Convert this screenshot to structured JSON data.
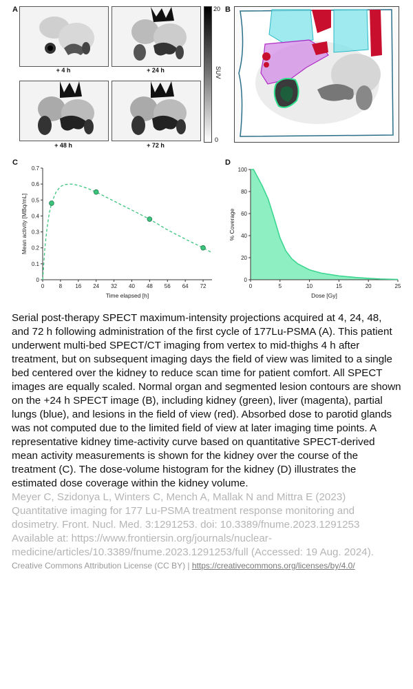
{
  "figure": {
    "panel_a": {
      "letter": "A",
      "images": [
        {
          "label": "+ 4 h"
        },
        {
          "label": "+ 24 h"
        },
        {
          "label": "+ 48 h"
        },
        {
          "label": "+ 72 h"
        }
      ],
      "colorbar": {
        "max": "20",
        "min": "0",
        "title": "SUV"
      }
    },
    "panel_b": {
      "letter": "B"
    },
    "panel_c": {
      "letter": "C"
    },
    "panel_d": {
      "letter": "D"
    }
  },
  "chart_data": [
    {
      "type": "line",
      "panel": "C",
      "xlabel": "Time elapsed [h]",
      "ylabel": "Mean activity [MBq/mL]",
      "x_ticks": [
        "0",
        "8",
        "16",
        "24",
        "32",
        "40",
        "48",
        "56",
        "64",
        "72"
      ],
      "y_ticks": [
        "0",
        "0.1",
        "0.2",
        "0.3",
        "0.4",
        "0.5",
        "0.6",
        "0.7"
      ],
      "xlim": [
        0,
        76
      ],
      "ylim": [
        0,
        0.7
      ],
      "points": [
        {
          "x": 4,
          "y": 0.48
        },
        {
          "x": 24,
          "y": 0.55
        },
        {
          "x": 48,
          "y": 0.38
        },
        {
          "x": 72,
          "y": 0.2
        }
      ],
      "fit_curve": [
        {
          "x": 0,
          "y": 0
        },
        {
          "x": 1,
          "y": 0.2
        },
        {
          "x": 2,
          "y": 0.33
        },
        {
          "x": 3,
          "y": 0.42
        },
        {
          "x": 4,
          "y": 0.48
        },
        {
          "x": 6,
          "y": 0.55
        },
        {
          "x": 8,
          "y": 0.585
        },
        {
          "x": 10,
          "y": 0.597
        },
        {
          "x": 13,
          "y": 0.6
        },
        {
          "x": 16,
          "y": 0.592
        },
        {
          "x": 20,
          "y": 0.574
        },
        {
          "x": 24,
          "y": 0.55
        },
        {
          "x": 32,
          "y": 0.493
        },
        {
          "x": 40,
          "y": 0.437
        },
        {
          "x": 48,
          "y": 0.38
        },
        {
          "x": 56,
          "y": 0.313
        },
        {
          "x": 64,
          "y": 0.255
        },
        {
          "x": 72,
          "y": 0.2
        },
        {
          "x": 76,
          "y": 0.17
        }
      ],
      "color": "#3cc47c",
      "grid": false
    },
    {
      "type": "area",
      "panel": "D",
      "xlabel": "Dose [Gy]",
      "ylabel": "% Coverage",
      "x_ticks": [
        "0",
        "5",
        "10",
        "15",
        "20",
        "25"
      ],
      "y_ticks": [
        "0",
        "20",
        "40",
        "60",
        "80",
        "100"
      ],
      "xlim": [
        0,
        25
      ],
      "ylim": [
        0,
        100
      ],
      "points": [
        {
          "x": 0,
          "y": 100
        },
        {
          "x": 0.5,
          "y": 100
        },
        {
          "x": 1,
          "y": 95
        },
        {
          "x": 2,
          "y": 85
        },
        {
          "x": 3,
          "y": 73
        },
        {
          "x": 4,
          "y": 56
        },
        {
          "x": 5,
          "y": 38
        },
        {
          "x": 6,
          "y": 26
        },
        {
          "x": 7,
          "y": 19
        },
        {
          "x": 8,
          "y": 14.5
        },
        {
          "x": 10,
          "y": 9
        },
        {
          "x": 12,
          "y": 6
        },
        {
          "x": 15,
          "y": 3.5
        },
        {
          "x": 18,
          "y": 2
        },
        {
          "x": 20,
          "y": 1.3
        },
        {
          "x": 22,
          "y": 0.7
        },
        {
          "x": 25,
          "y": 0.3
        }
      ],
      "color": "#3cd690",
      "fill": "#8ef0c2",
      "grid": false
    }
  ],
  "caption": "Serial post-therapy SPECT maximum-intensity projections acquired at 4, 24, 48, and 72 h following administration of the first cycle of 177Lu-PSMA (A). This patient underwent multi-bed SPECT/CT imaging from vertex to mid-thighs 4 h after treatment, but on subsequent imaging days the field of view was limited to a single bed centered over the kidney to reduce scan time for patient comfort. All SPECT images are equally scaled. Normal organ and segmented lesion contours are shown on the +24 h SPECT image (B), including kidney (green), liver (magenta), partial lungs (blue), and lesions in the field of view (red). Absorbed dose to parotid glands was not computed due to the limited field of view at later imaging time points. A representative kidney time-activity curve based on quantitative SPECT-derived mean activity measurements is shown for the kidney over the course of the treatment (C). The dose-volume histogram for the kidney (D) illustrates the estimated dose coverage within the kidney volume.",
  "citation": "Meyer C, Szidonya L, Winters C, Mench A, Mallak N and Mittra E (2023) Quantitative imaging for 177 Lu-PSMA treatment response monitoring and dosimetry. Front. Nucl. Med. 3:1291253. doi: 10.3389/fnume.2023.1291253 Available at: https://www.frontiersin.org/journals/nuclear-medicine/articles/10.3389/fnume.2023.1291253/full (Accessed: 19 Aug. 2024).",
  "license": {
    "text": "Creative Commons Attribution License (CC BY) | ",
    "link": "https://creativecommons.org/licenses/by/4.0/"
  }
}
